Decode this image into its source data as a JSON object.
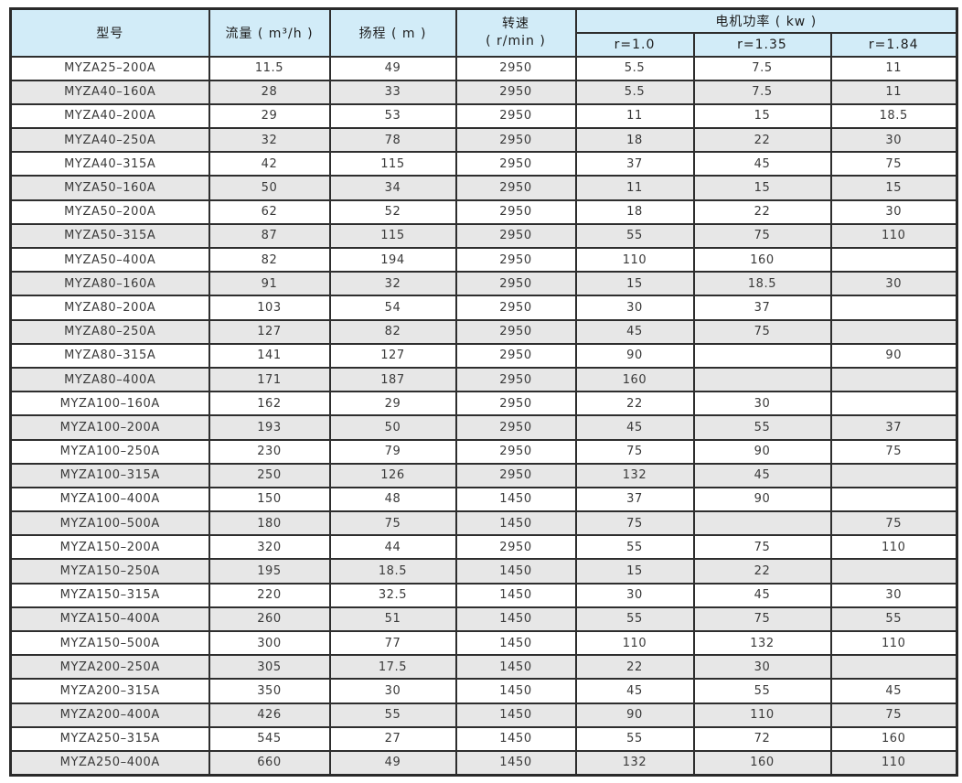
{
  "accent_colors": {
    "header_background": "#d2ecf8",
    "row_alt_background": "#e7e7e7",
    "row_background": "#ffffff",
    "border": "#2e2e2e",
    "text": "#3a3a3a"
  },
  "chart_data": {
    "type": "table",
    "title": "",
    "columns": {
      "model": "型号",
      "flow": "流量 ( m³/h )",
      "head": "扬程 ( m )",
      "speed_line1": "转速",
      "speed_line2": "( r/min )",
      "power": "电机功率 ( kw )",
      "r10": "r=1.0",
      "r135": "r=1.35",
      "r184": "r=1.84"
    },
    "rows": [
      [
        "MYZA25–200A",
        "11.5",
        "49",
        "2950",
        "5.5",
        "7.5",
        "11"
      ],
      [
        "MYZA40–160A",
        "28",
        "33",
        "2950",
        "5.5",
        "7.5",
        "11"
      ],
      [
        "MYZA40–200A",
        "29",
        "53",
        "2950",
        "11",
        "15",
        "18.5"
      ],
      [
        "MYZA40–250A",
        "32",
        "78",
        "2950",
        "18",
        "22",
        "30"
      ],
      [
        "MYZA40–315A",
        "42",
        "115",
        "2950",
        "37",
        "45",
        "75"
      ],
      [
        "MYZA50–160A",
        "50",
        "34",
        "2950",
        "11",
        "15",
        "15"
      ],
      [
        "MYZA50–200A",
        "62",
        "52",
        "2950",
        "18",
        "22",
        "30"
      ],
      [
        "MYZA50–315A",
        "87",
        "115",
        "2950",
        "55",
        "75",
        "110"
      ],
      [
        "MYZA50–400A",
        "82",
        "194",
        "2950",
        "110",
        "160",
        ""
      ],
      [
        "MYZA80–160A",
        "91",
        "32",
        "2950",
        "15",
        "18.5",
        "30"
      ],
      [
        "MYZA80–200A",
        "103",
        "54",
        "2950",
        "30",
        "37",
        ""
      ],
      [
        "MYZA80–250A",
        "127",
        "82",
        "2950",
        "45",
        "75",
        ""
      ],
      [
        "MYZA80–315A",
        "141",
        "127",
        "2950",
        "90",
        "",
        "90"
      ],
      [
        "MYZA80–400A",
        "171",
        "187",
        "2950",
        "160",
        "",
        ""
      ],
      [
        "MYZA100–160A",
        "162",
        "29",
        "2950",
        "22",
        "30",
        ""
      ],
      [
        "MYZA100–200A",
        "193",
        "50",
        "2950",
        "45",
        "55",
        "37"
      ],
      [
        "MYZA100–250A",
        "230",
        "79",
        "2950",
        "75",
        "90",
        "75"
      ],
      [
        "MYZA100–315A",
        "250",
        "126",
        "2950",
        "132",
        "45",
        ""
      ],
      [
        "MYZA100–400A",
        "150",
        "48",
        "1450",
        "37",
        "90",
        ""
      ],
      [
        "MYZA100–500A",
        "180",
        "75",
        "1450",
        "75",
        "",
        "75"
      ],
      [
        "MYZA150–200A",
        "320",
        "44",
        "2950",
        "55",
        "75",
        "110"
      ],
      [
        "MYZA150–250A",
        "195",
        "18.5",
        "1450",
        "15",
        "22",
        ""
      ],
      [
        "MYZA150–315A",
        "220",
        "32.5",
        "1450",
        "30",
        "45",
        "30"
      ],
      [
        "MYZA150–400A",
        "260",
        "51",
        "1450",
        "55",
        "75",
        "55"
      ],
      [
        "MYZA150–500A",
        "300",
        "77",
        "1450",
        "110",
        "132",
        "110"
      ],
      [
        "MYZA200–250A",
        "305",
        "17.5",
        "1450",
        "22",
        "30",
        ""
      ],
      [
        "MYZA200–315A",
        "350",
        "30",
        "1450",
        "45",
        "55",
        "45"
      ],
      [
        "MYZA200–400A",
        "426",
        "55",
        "1450",
        "90",
        "110",
        "75"
      ],
      [
        "MYZA250–315A",
        "545",
        "27",
        "1450",
        "55",
        "72",
        "160"
      ],
      [
        "MYZA250–400A",
        "660",
        "49",
        "1450",
        "132",
        "160",
        "110"
      ]
    ]
  }
}
